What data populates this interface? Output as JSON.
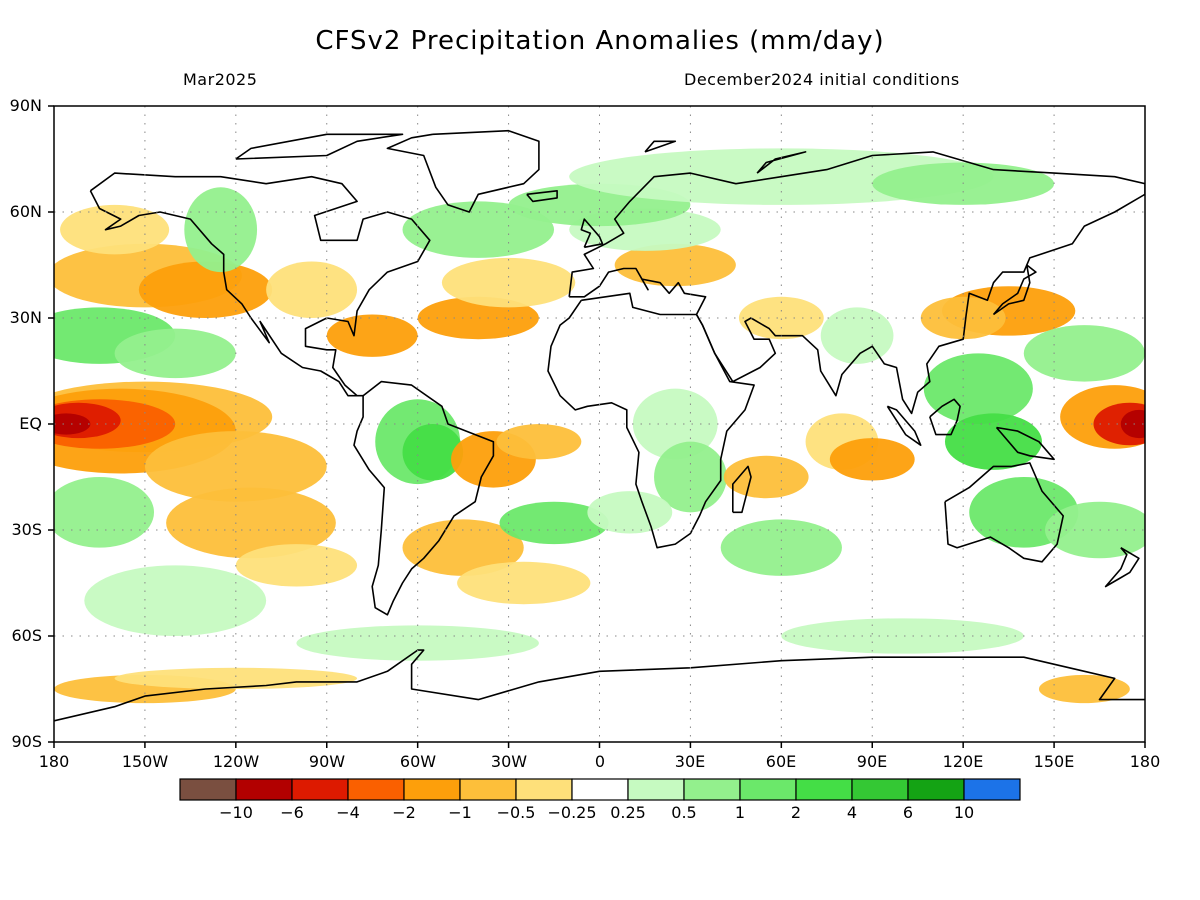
{
  "title": "CFSv2 Precipitation Anomalies (mm/day)",
  "subtitle_left": "Mar2025",
  "subtitle_right": "December2024 initial conditions",
  "lat_ticks": [
    "90N",
    "60N",
    "30N",
    "EQ",
    "30S",
    "60S",
    "90S"
  ],
  "lon_ticks": [
    "180",
    "150W",
    "120W",
    "90W",
    "60W",
    "30W",
    "0",
    "30E",
    "60E",
    "90E",
    "120E",
    "150E",
    "180"
  ],
  "colorbar": {
    "colors": [
      "#7a4f40",
      "#b20000",
      "#dd1a00",
      "#fa6000",
      "#fd9f0b",
      "#fdbf3a",
      "#fee07a",
      "#ffffff",
      "#c6fac1",
      "#93f08d",
      "#6be86a",
      "#44de46",
      "#34c834",
      "#14a314",
      "#1c73e8"
    ],
    "labels": [
      "−10",
      "−6",
      "−4",
      "−2",
      "−1",
      "−0.5",
      "−0.25",
      "0.25",
      "0.5",
      "1",
      "2",
      "4",
      "6",
      "10"
    ]
  },
  "colors": {
    "wet_light": "#c6fac1",
    "wet_mid": "#93f08d",
    "wet": "#6be86a",
    "wet_strong": "#44de46",
    "dry_light": "#fee07a",
    "dry_mid": "#fdbf3a",
    "dry": "#fd9f0b",
    "dry_strong": "#fa6000",
    "dry_extreme": "#dd1a00",
    "dry_max": "#b20000"
  }
}
